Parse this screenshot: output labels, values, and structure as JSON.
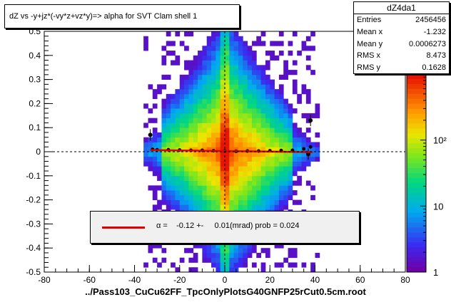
{
  "title": "dZ vs -y+jz*(-vy*z+vz*y)=> alpha for SVT Clam shell 1",
  "stats": {
    "name": "dZ4da1",
    "rows": [
      {
        "label": "Entries",
        "value": "2456456"
      },
      {
        "label": "Mean x",
        "value": "-1.232"
      },
      {
        "label": "Mean y",
        "value": "0.0006273"
      },
      {
        "label": "RMS x",
        "value": "8.473"
      },
      {
        "label": "RMS y",
        "value": "0.1628"
      }
    ]
  },
  "legend": {
    "text": "α =    -0.12 +-     0.01(mrad) prob = 0.024",
    "line_color": "#e00000"
  },
  "xlabel": "../Pass103_CuCu62FF_TpcOnlyPlotsG40GNFP25rCut0.5cm.root",
  "chart_data": {
    "type": "heatmap",
    "title": "dZ vs -y+jz*(-vy*z+vz*y)=> alpha for SVT Clam shell 1",
    "xlabel": "../Pass103_CuCu62FF_TpcOnlyPlotsG40GNFP25rCut0.5cm.root",
    "ylabel": "",
    "xlim": [
      -80,
      80
    ],
    "ylim": [
      -0.5,
      0.5
    ],
    "x_ticks": [
      -80,
      -60,
      -40,
      -20,
      0,
      20,
      40,
      60,
      80
    ],
    "y_ticks": [
      -0.5,
      -0.4,
      -0.3,
      -0.2,
      -0.1,
      0,
      0.1,
      0.2,
      0.3,
      0.4,
      0.5
    ],
    "z_scale": "log",
    "z_range": [
      1,
      1000
    ],
    "z_ticks": [
      {
        "value": 1,
        "label": "1"
      },
      {
        "value": 10,
        "label": "10"
      },
      {
        "value": 100,
        "label": "10²"
      }
    ],
    "grid": false,
    "profile": {
      "x": [
        -32,
        -30,
        -25,
        -20,
        -15,
        -10,
        -5,
        0,
        5,
        10,
        15,
        20,
        25,
        30,
        35,
        38
      ],
      "y": [
        0.01,
        0.008,
        0.008,
        0.007,
        0.006,
        0.006,
        0.004,
        0.003,
        0.002,
        0.003,
        0.003,
        0.004,
        0.005,
        0.006,
        0.012,
        0.02
      ]
    },
    "outliers": [
      {
        "x": -33,
        "y": 0.07
      },
      {
        "x": 38,
        "y": 0.13
      },
      {
        "x": 37,
        "y": -0.01
      }
    ],
    "fit": {
      "slope_mrad": -0.12,
      "error_mrad": 0.01,
      "prob": 0.024,
      "x_range": [
        -33,
        39
      ],
      "color": "#e00000"
    }
  }
}
